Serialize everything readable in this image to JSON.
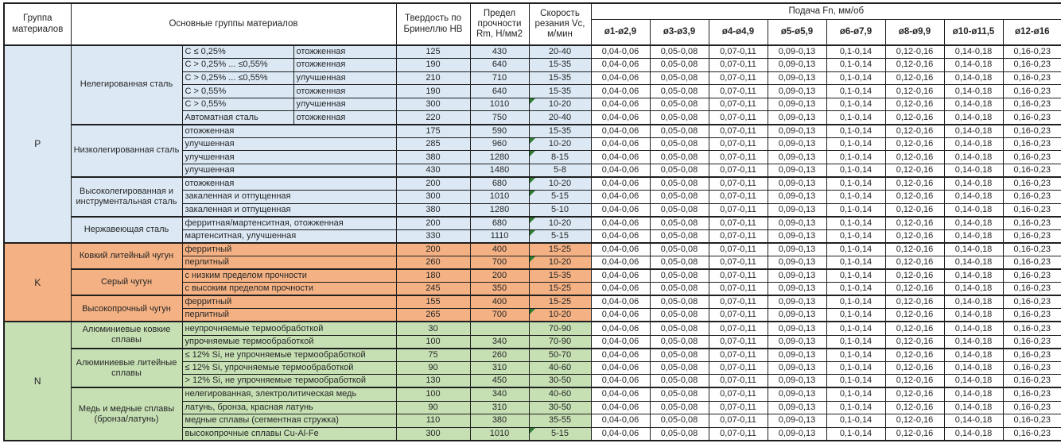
{
  "headers": {
    "group": "Группа материалов",
    "main_groups": "Основные группы материалов",
    "hardness": "Твердость по Бринеллю HB",
    "strength": "Предел прочности Rm, Н/мм2",
    "speed": "Скорость резания Vc, м/мин",
    "feed": "Подача Fn, мм/об"
  },
  "feed_diameters": [
    "ø1-ø2,9",
    "ø3-ø3,9",
    "ø4-ø4,9",
    "ø5-ø5,9",
    "ø6-ø7,9",
    "ø8-ø9,9",
    "ø10-ø11,5",
    "ø12-ø16"
  ],
  "feed_values": [
    "0,04-0,06",
    "0,05-0,08",
    "0,07-0,11",
    "0,09-0,13",
    "0,1-0,14",
    "0,12-0,16",
    "0,14-0,18",
    "0,16-0,23"
  ],
  "colors": {
    "group_p": "#DCE9F5",
    "group_k": "#F4B183",
    "group_n": "#C6E0B4",
    "note_marker": "#2e7d32",
    "border": "#1f1f1f",
    "feed_cell_bg": "#ffffff"
  },
  "groups": [
    {
      "code": "P",
      "color": "#DCE9F5",
      "sections": [
        {
          "name": "Нелегированная сталь",
          "rows": [
            {
              "desc": [
                "C ≤ 0,25%",
                "отожженная"
              ],
              "hb": "125",
              "rm": "430",
              "vc": "20-40",
              "note": false
            },
            {
              "desc": [
                "C > 0,25% ... ≤0,55%",
                "отожженная"
              ],
              "hb": "190",
              "rm": "640",
              "vc": "15-35",
              "note": false
            },
            {
              "desc": [
                "C > 0,25% ... ≤0,55%",
                "улучшенная"
              ],
              "hb": "210",
              "rm": "710",
              "vc": "15-35",
              "note": false
            },
            {
              "desc": [
                "C > 0,55%",
                "отожженная"
              ],
              "hb": "190",
              "rm": "640",
              "vc": "15-35",
              "note": false
            },
            {
              "desc": [
                "C > 0,55%",
                "улучшенная"
              ],
              "hb": "300",
              "rm": "1010",
              "vc": "10-20",
              "note": true
            },
            {
              "desc": [
                "Автоматная сталь",
                "отожженная"
              ],
              "hb": "220",
              "rm": "750",
              "vc": "20-40",
              "note": false
            }
          ]
        },
        {
          "name": "Низколегированная сталь",
          "rows": [
            {
              "desc": [
                "отожженная"
              ],
              "hb": "175",
              "rm": "590",
              "vc": "15-35",
              "note": false
            },
            {
              "desc": [
                "улучшенная"
              ],
              "hb": "285",
              "rm": "960",
              "vc": "10-20",
              "note": true
            },
            {
              "desc": [
                "улучшенная"
              ],
              "hb": "380",
              "rm": "1280",
              "vc": "8-15",
              "note": true
            },
            {
              "desc": [
                "улучшенная"
              ],
              "hb": "430",
              "rm": "1480",
              "vc": "5-8",
              "note": false
            }
          ]
        },
        {
          "name": "Высоколегированная и инструментальная сталь",
          "rows": [
            {
              "desc": [
                "отожженная"
              ],
              "hb": "200",
              "rm": "680",
              "vc": "10-20",
              "note": true
            },
            {
              "desc": [
                "закаленная и отпущенная"
              ],
              "hb": "300",
              "rm": "1010",
              "vc": "5-15",
              "note": true
            },
            {
              "desc": [
                "закаленная и отпущенная"
              ],
              "hb": "380",
              "rm": "1280",
              "vc": "5-10",
              "note": false
            }
          ]
        },
        {
          "name": "Нержавеющая сталь",
          "rows": [
            {
              "desc": [
                "ферритная/мартенситная, отожженная"
              ],
              "hb": "200",
              "rm": "680",
              "vc": "10-20",
              "note": true
            },
            {
              "desc": [
                "мартенситная, улучшенная"
              ],
              "hb": "330",
              "rm": "1110",
              "vc": "5-15",
              "note": true
            }
          ]
        }
      ]
    },
    {
      "code": "K",
      "color": "#F4B183",
      "sections": [
        {
          "name": "Ковкий литейный чугун",
          "rows": [
            {
              "desc": [
                "ферритный"
              ],
              "hb": "200",
              "rm": "400",
              "vc": "15-25",
              "note": false
            },
            {
              "desc": [
                "перлитный"
              ],
              "hb": "260",
              "rm": "700",
              "vc": "10-20",
              "note": true
            }
          ]
        },
        {
          "name": "Серый чугун",
          "rows": [
            {
              "desc": [
                "с низким пределом прочности"
              ],
              "hb": "180",
              "rm": "200",
              "vc": "15-35",
              "note": false
            },
            {
              "desc": [
                "с высоким пределом прочности"
              ],
              "hb": "245",
              "rm": "350",
              "vc": "15-25",
              "note": false
            }
          ]
        },
        {
          "name": "Высокопрочный чугун",
          "rows": [
            {
              "desc": [
                "ферритный"
              ],
              "hb": "155",
              "rm": "400",
              "vc": "15-25",
              "note": false
            },
            {
              "desc": [
                "перлитный"
              ],
              "hb": "265",
              "rm": "700",
              "vc": "10-20",
              "note": true
            }
          ]
        }
      ]
    },
    {
      "code": "N",
      "color": "#C6E0B4",
      "sections": [
        {
          "name": "Алюминиевые ковкие сплавы",
          "rows": [
            {
              "desc": [
                "неупрочняемые термообработкой"
              ],
              "hb": "30",
              "rm": "",
              "vc": "70-90",
              "note": false
            },
            {
              "desc": [
                "упрочняемые термообработкой"
              ],
              "hb": "100",
              "rm": "340",
              "vc": "70-90",
              "note": false
            }
          ]
        },
        {
          "name": "Алюминиевые литейные сплавы",
          "rows": [
            {
              "desc": [
                "≤ 12% Si, не упрочняемые термообработкой"
              ],
              "hb": "75",
              "rm": "260",
              "vc": "50-70",
              "note": false
            },
            {
              "desc": [
                "≤ 12% Si, упрочняемые термообработкой"
              ],
              "hb": "90",
              "rm": "310",
              "vc": "40-60",
              "note": false
            },
            {
              "desc": [
                "> 12% Si, не упрочняемые термообработкой"
              ],
              "hb": "130",
              "rm": "450",
              "vc": "30-50",
              "note": false
            }
          ]
        },
        {
          "name": "Медь и медные сплавы (бронза/латунь)",
          "rows": [
            {
              "desc": [
                "нелегированная, электролитическая медь"
              ],
              "hb": "100",
              "rm": "340",
              "vc": "40-60",
              "note": false
            },
            {
              "desc": [
                "латунь, бронза, красная латунь"
              ],
              "hb": "90",
              "rm": "310",
              "vc": "30-50",
              "note": false
            },
            {
              "desc": [
                "медные сплавы (сегментная стружка)"
              ],
              "hb": "110",
              "rm": "380",
              "vc": "35-55",
              "note": false
            },
            {
              "desc": [
                "высокопрочные сплавы Cu-Al-Fe"
              ],
              "hb": "300",
              "rm": "1010",
              "vc": "5-15",
              "note": true
            }
          ]
        }
      ]
    }
  ]
}
